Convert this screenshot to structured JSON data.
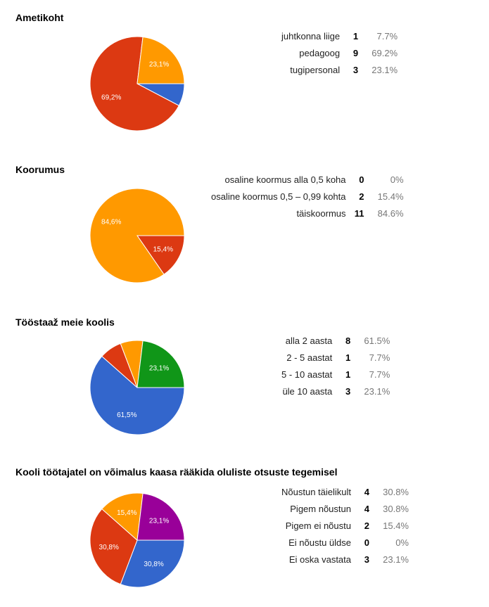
{
  "chart_data": [
    {
      "type": "pie",
      "title": "Ametikoht",
      "categories": [
        "juhtkonna liige",
        "pedagoog",
        "tugipersonal"
      ],
      "values": [
        1,
        9,
        3
      ],
      "percent_labels": [
        "7.7%",
        "69.2%",
        "23.1%"
      ],
      "slice_labels": [
        "",
        "69,2%",
        "23,1%"
      ],
      "colors": [
        "#3366cc",
        "#dc3912",
        "#ff9900"
      ]
    },
    {
      "type": "pie",
      "title": "Koorumus",
      "categories": [
        "osaline koormus alla 0,5 koha",
        "osaline koormus 0,5 – 0,99 kohta",
        "täiskoormus"
      ],
      "values": [
        0,
        2,
        11
      ],
      "percent_labels": [
        "0%",
        "15.4%",
        "84.6%"
      ],
      "slice_labels": [
        "",
        "15,4%",
        "84,6%"
      ],
      "colors": [
        "#3366cc",
        "#dc3912",
        "#ff9900"
      ]
    },
    {
      "type": "pie",
      "title": "Tööstaaž meie koolis",
      "categories": [
        "alla 2 aasta",
        "2 - 5 aastat",
        "5 - 10 aastat",
        "üle 10 aasta"
      ],
      "values": [
        8,
        1,
        1,
        3
      ],
      "percent_labels": [
        "61.5%",
        "7.7%",
        "7.7%",
        "23.1%"
      ],
      "slice_labels": [
        "61,5%",
        "",
        "",
        "23,1%"
      ],
      "colors": [
        "#3366cc",
        "#dc3912",
        "#ff9900",
        "#109618"
      ]
    },
    {
      "type": "pie",
      "title": "Kooli töötajatel on võimalus kaasa rääkida oluliste otsuste tegemisel",
      "categories": [
        "Nõustun täielikult",
        "Pigem nõustun",
        "Pigem ei nõustu",
        "Ei nõustu üldse",
        "Ei oska vastata"
      ],
      "values": [
        4,
        4,
        2,
        0,
        3
      ],
      "percent_labels": [
        "30.8%",
        "30.8%",
        "15.4%",
        "0%",
        "23.1%"
      ],
      "slice_labels": [
        "30,8%",
        "30,8%",
        "15,4%",
        "",
        "23,1%"
      ],
      "colors": [
        "#3366cc",
        "#dc3912",
        "#ff9900",
        "#109618",
        "#990099"
      ]
    }
  ]
}
